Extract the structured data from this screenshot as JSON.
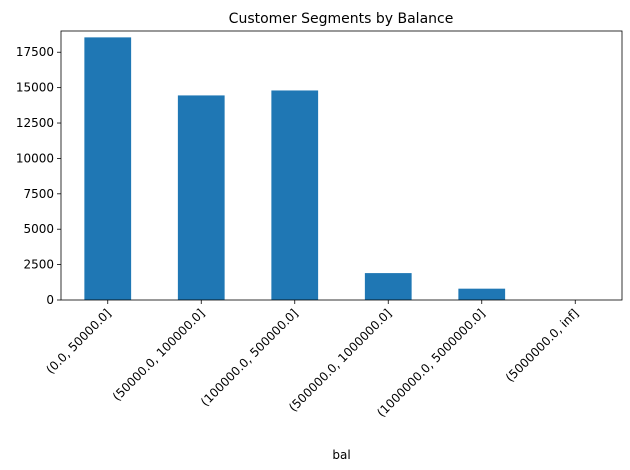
{
  "chart_data": {
    "type": "bar",
    "title": "Customer Segments by Balance",
    "xlabel": "bal",
    "ylabel": "",
    "categories": [
      "(0.0, 50000.0]",
      "(50000.0, 100000.0]",
      "(100000.0, 500000.0]",
      "(500000.0, 1000000.0]",
      "(1000000.0, 5000000.0]",
      "(5000000.0, inf]"
    ],
    "values": [
      18550,
      14450,
      14800,
      1900,
      800,
      0
    ],
    "ylim": [
      0,
      19000
    ],
    "yticks": [
      0,
      2500,
      5000,
      7500,
      10000,
      12500,
      15000,
      17500
    ],
    "ytick_labels": [
      "0",
      "2500",
      "5000",
      "7500",
      "10000",
      "12500",
      "15000",
      "17500"
    ],
    "bar_color": "#1f77b4",
    "grid": false,
    "legend": "none"
  }
}
